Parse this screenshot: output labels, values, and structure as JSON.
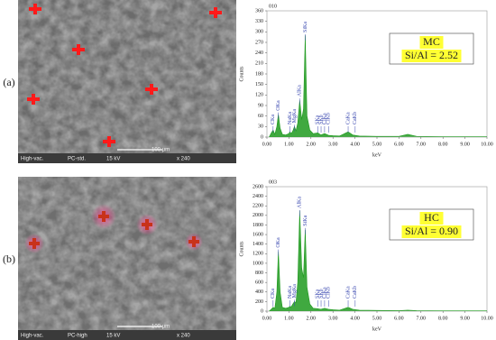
{
  "panels": [
    {
      "label": "(a)",
      "sem_info": [
        "High-vac.",
        "PC-std.",
        "15 kV",
        "x 240"
      ],
      "scale_bar": "100 μm"
    },
    {
      "label": "(b)",
      "sem_info": [
        "High-vac.",
        "PC-high",
        "15 kV",
        "x 240"
      ],
      "scale_bar": "100 μm"
    }
  ],
  "chart_data": [
    {
      "type": "line",
      "title": "010",
      "xlabel": "keV",
      "ylabel": "Counts",
      "color": "#1e9a1e",
      "x": [
        0.1,
        0.2,
        0.28,
        0.36,
        0.45,
        0.52,
        0.6,
        0.7,
        0.85,
        1.0,
        1.04,
        1.1,
        1.18,
        1.25,
        1.32,
        1.4,
        1.49,
        1.58,
        1.66,
        1.74,
        1.82,
        1.95,
        2.1,
        2.31,
        2.45,
        2.62,
        2.8,
        3.0,
        3.3,
        3.69,
        3.9,
        4.2,
        5.0,
        6.0,
        6.4,
        6.8,
        8.0,
        10.0
      ],
      "values": [
        0,
        12,
        20,
        8,
        30,
        65,
        25,
        8,
        6,
        10,
        15,
        10,
        18,
        30,
        18,
        40,
        105,
        50,
        80,
        290,
        60,
        20,
        10,
        12,
        6,
        10,
        5,
        4,
        3,
        15,
        6,
        3,
        2,
        2,
        8,
        2,
        1,
        1
      ],
      "xlim": [
        0,
        10
      ],
      "xticks": [
        {
          "value": 0,
          "label": "0.00"
        },
        {
          "value": 1,
          "label": "1.00"
        },
        {
          "value": 2,
          "label": "2.00"
        },
        {
          "value": 3,
          "label": "3.00"
        },
        {
          "value": 4,
          "label": "4.00"
        },
        {
          "value": 5,
          "label": "5.00"
        },
        {
          "value": 6,
          "label": "6.00"
        },
        {
          "value": 7,
          "label": "7.00"
        },
        {
          "value": 8,
          "label": "8.00"
        },
        {
          "value": 9,
          "label": "9.00"
        },
        {
          "value": 10,
          "label": "10.00"
        }
      ],
      "ylim": [
        0,
        360
      ],
      "yticks": [
        0,
        30,
        60,
        90,
        120,
        150,
        180,
        210,
        240,
        270,
        300,
        330,
        360
      ],
      "annotations": [
        {
          "text": "CKa",
          "x": 0.28
        },
        {
          "text": "OKa",
          "x": 0.52
        },
        {
          "text": "NaKa",
          "x": 1.04
        },
        {
          "text": "MgKa",
          "x": 1.25
        },
        {
          "text": "AlKa",
          "x": 1.49
        },
        {
          "text": "SiKa",
          "x": 1.74
        },
        {
          "text": "SKa",
          "x": 2.31
        },
        {
          "text": "SKb",
          "x": 2.46
        },
        {
          "text": "ClKa",
          "x": 2.62
        },
        {
          "text": "ClKb",
          "x": 2.8
        },
        {
          "text": "CaKa",
          "x": 3.69
        },
        {
          "text": "CaKb",
          "x": 4.01
        }
      ],
      "inset_text": [
        "MC",
        "Si/Al = 2.52"
      ]
    },
    {
      "type": "line",
      "title": "003",
      "xlabel": "keV",
      "ylabel": "Counts",
      "color": "#1e9a1e",
      "x": [
        0.1,
        0.2,
        0.28,
        0.36,
        0.45,
        0.52,
        0.6,
        0.7,
        0.85,
        1.0,
        1.04,
        1.1,
        1.18,
        1.25,
        1.32,
        1.4,
        1.49,
        1.58,
        1.66,
        1.74,
        1.82,
        1.95,
        2.1,
        2.31,
        2.45,
        2.62,
        2.8,
        3.0,
        3.3,
        3.69,
        3.9,
        4.2,
        5.0,
        6.0,
        6.4,
        6.8,
        8.0,
        10.0
      ],
      "values": [
        0,
        40,
        80,
        60,
        400,
        1250,
        400,
        80,
        60,
        80,
        100,
        90,
        150,
        200,
        180,
        600,
        2100,
        900,
        700,
        1700,
        500,
        150,
        60,
        50,
        40,
        60,
        40,
        30,
        20,
        80,
        40,
        20,
        15,
        10,
        20,
        10,
        5,
        5
      ],
      "xlim": [
        0,
        10
      ],
      "xticks": [
        {
          "value": 0,
          "label": "0.00"
        },
        {
          "value": 1,
          "label": "1.00"
        },
        {
          "value": 2,
          "label": "2.00"
        },
        {
          "value": 3,
          "label": "3.00"
        },
        {
          "value": 4,
          "label": "4.00"
        },
        {
          "value": 5,
          "label": "5.00"
        },
        {
          "value": 6,
          "label": "6.00"
        },
        {
          "value": 7,
          "label": "7.00"
        },
        {
          "value": 8,
          "label": "8.00"
        },
        {
          "value": 9,
          "label": "9.00"
        },
        {
          "value": 10,
          "label": "10.00"
        }
      ],
      "ylim": [
        0,
        2600
      ],
      "yticks": [
        0,
        200,
        400,
        600,
        800,
        1000,
        1200,
        1400,
        1600,
        1800,
        2000,
        2200,
        2400,
        2600
      ],
      "annotations": [
        {
          "text": "CKa",
          "x": 0.28
        },
        {
          "text": "OKa",
          "x": 0.52
        },
        {
          "text": "NaKa",
          "x": 1.04
        },
        {
          "text": "MgKa",
          "x": 1.25
        },
        {
          "text": "AlKa",
          "x": 1.49
        },
        {
          "text": "SiKa",
          "x": 1.74
        },
        {
          "text": "SKa",
          "x": 2.31
        },
        {
          "text": "SKb",
          "x": 2.46
        },
        {
          "text": "ClKa",
          "x": 2.62
        },
        {
          "text": "ClKb",
          "x": 2.8
        },
        {
          "text": "CaKa",
          "x": 3.69
        },
        {
          "text": "CaKb",
          "x": 4.01
        }
      ],
      "inset_text": [
        "HC",
        "Si/Al = 0.90"
      ]
    }
  ]
}
